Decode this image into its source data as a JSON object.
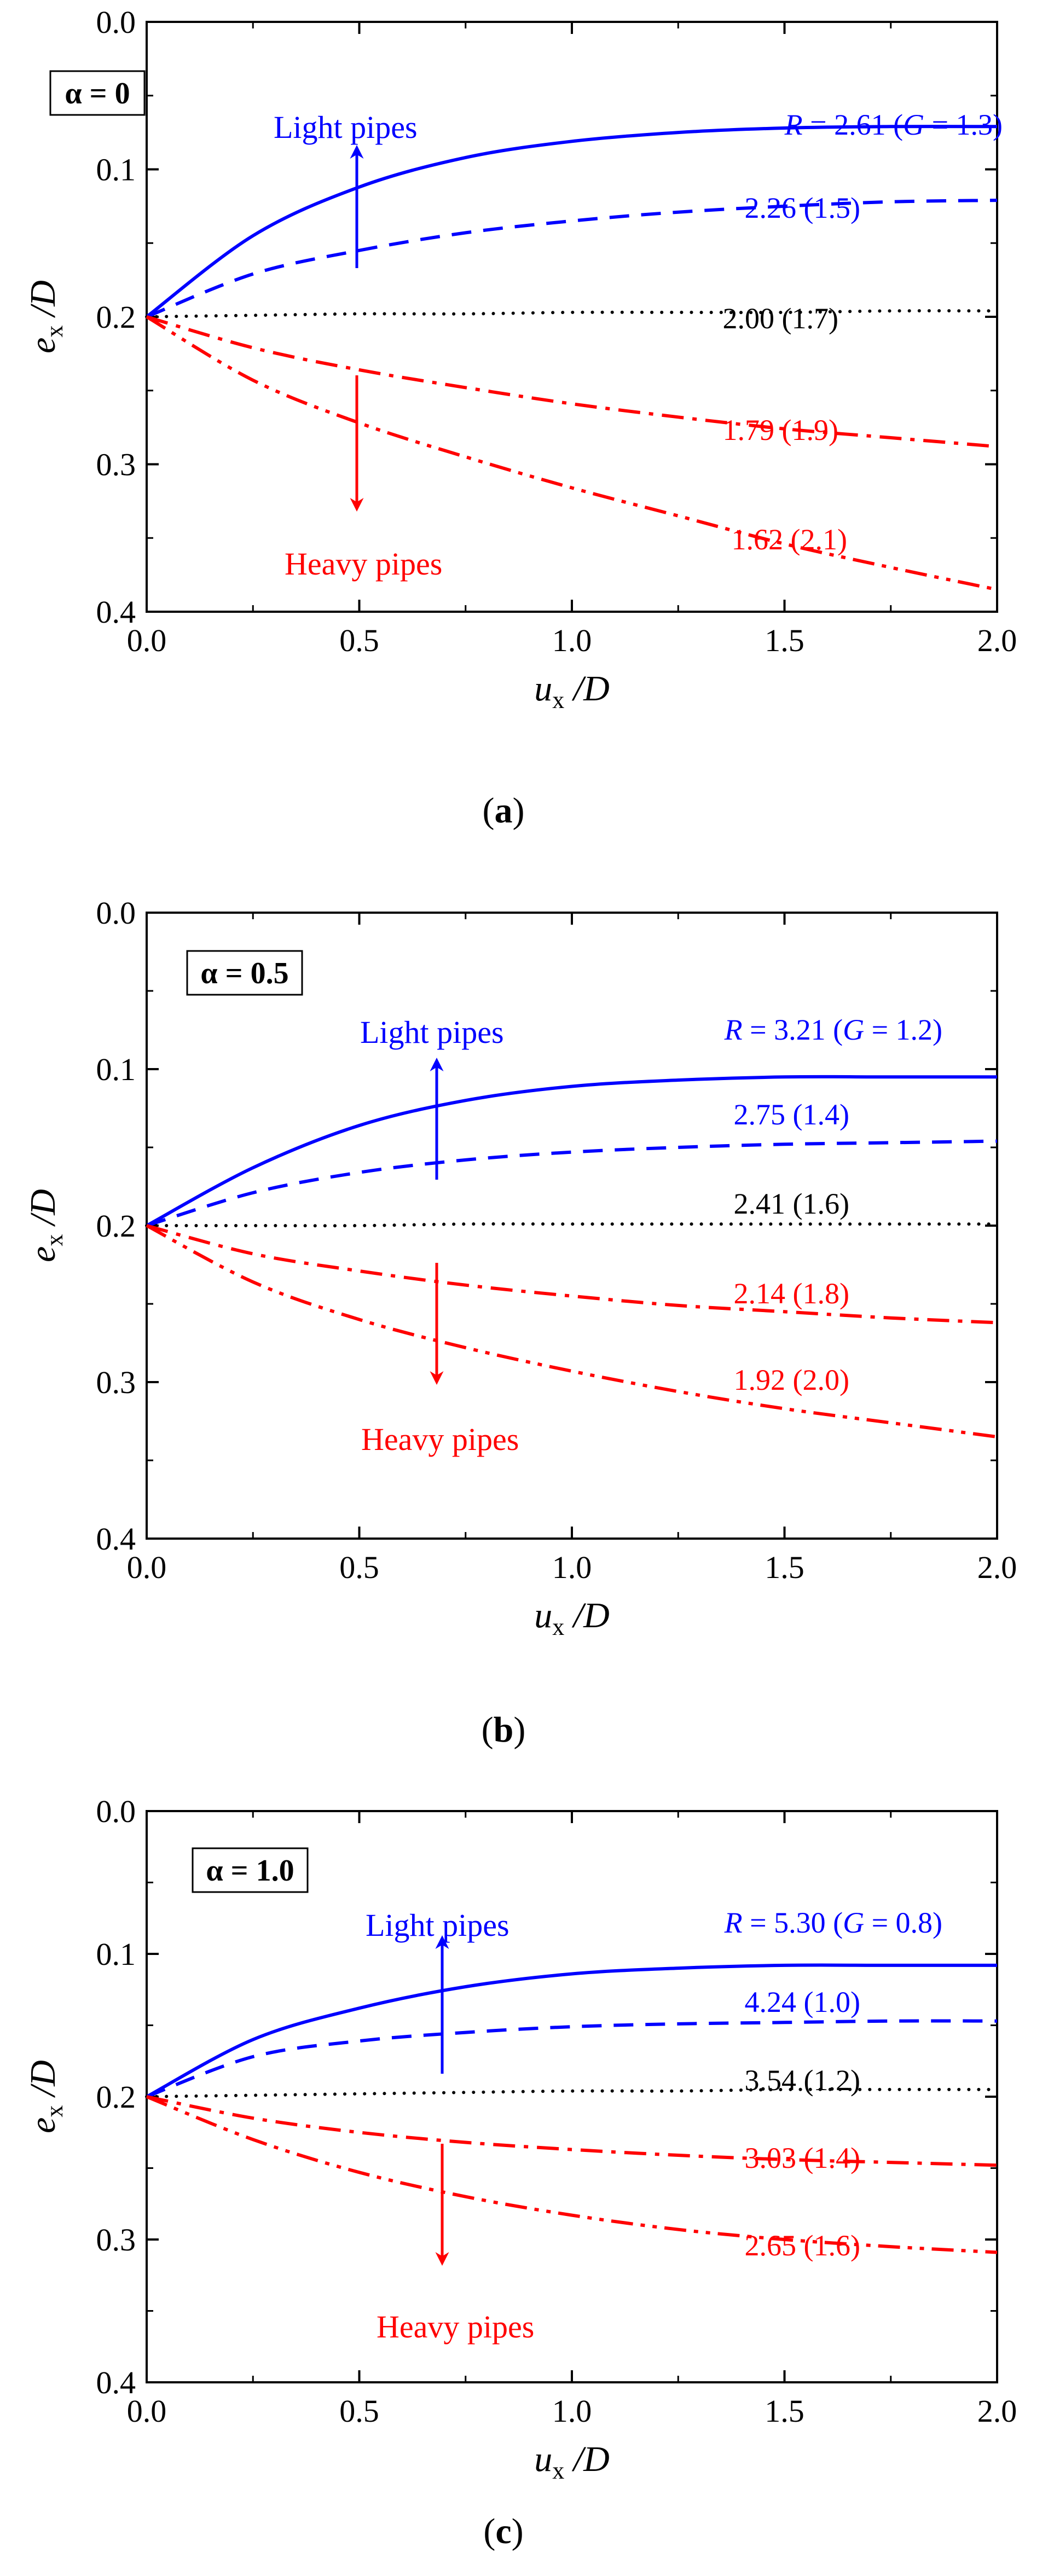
{
  "chart_data": [
    {
      "type": "line",
      "panel": "a",
      "panel_letter": "a",
      "alpha_text": "α = 0",
      "xlabel": "u_x /D",
      "ylabel": "e_x /D",
      "xlim": [
        0.0,
        2.0
      ],
      "ylim": [
        0.0,
        0.4
      ],
      "y_inverted": true,
      "xticks": [
        "0.0",
        "0.5",
        "1.0",
        "1.5",
        "2.0"
      ],
      "yticks": [
        "0.0",
        "0.1",
        "0.2",
        "0.3",
        "0.4"
      ],
      "x": [
        0.0,
        0.25,
        0.5,
        0.75,
        1.0,
        1.25,
        1.5,
        1.75,
        2.0
      ],
      "series": [
        {
          "label": "R = 2.61 (G = 1.3)",
          "R": "2.61",
          "G": "1.3",
          "color": "#0000ff",
          "style": "solid",
          "values": [
            0.2,
            0.145,
            0.112,
            0.092,
            0.081,
            0.075,
            0.072,
            0.071,
            0.071
          ]
        },
        {
          "label": "2.26 (1.5)",
          "R": "2.26",
          "G": "1.5",
          "color": "#0000ff",
          "style": "dash",
          "values": [
            0.2,
            0.171,
            0.155,
            0.143,
            0.135,
            0.129,
            0.125,
            0.122,
            0.121
          ]
        },
        {
          "label": "2.00 (1.7)",
          "R": "2.00",
          "G": "1.7",
          "color": "#000000",
          "style": "dot",
          "values": [
            0.2,
            0.199,
            0.198,
            0.198,
            0.197,
            0.197,
            0.197,
            0.196,
            0.196
          ]
        },
        {
          "label": "1.79 (1.9)",
          "R": "1.79",
          "G": "1.9",
          "color": "#ff0000",
          "style": "dashdot",
          "values": [
            0.2,
            0.221,
            0.236,
            0.248,
            0.259,
            0.268,
            0.276,
            0.282,
            0.288
          ]
        },
        {
          "label": "1.62 (2.1)",
          "R": "1.62",
          "G": "2.1",
          "color": "#ff0000",
          "style": "dashdotdot",
          "values": [
            0.2,
            0.243,
            0.272,
            0.295,
            0.316,
            0.335,
            0.354,
            0.37,
            0.385
          ]
        }
      ],
      "annotations": {
        "light": "Light pipes",
        "heavy": "Heavy pipes"
      }
    },
    {
      "type": "line",
      "panel": "b",
      "panel_letter": "b",
      "alpha_text": "α = 0.5",
      "xlabel": "u_x /D",
      "ylabel": "e_x /D",
      "xlim": [
        0.0,
        2.0
      ],
      "ylim": [
        0.0,
        0.4
      ],
      "y_inverted": true,
      "xticks": [
        "0.0",
        "0.5",
        "1.0",
        "1.5",
        "2.0"
      ],
      "yticks": [
        "0.0",
        "0.1",
        "0.2",
        "0.3",
        "0.4"
      ],
      "x": [
        0.0,
        0.25,
        0.5,
        0.75,
        1.0,
        1.25,
        1.5,
        1.75,
        2.0
      ],
      "series": [
        {
          "label": "R = 3.21 (G = 1.2)",
          "R": "3.21",
          "G": "1.2",
          "color": "#0000ff",
          "style": "solid",
          "values": [
            0.2,
            0.163,
            0.136,
            0.12,
            0.111,
            0.107,
            0.105,
            0.105,
            0.105
          ]
        },
        {
          "label": "2.75 (1.4)",
          "R": "2.75",
          "G": "1.4",
          "color": "#0000ff",
          "style": "dash",
          "values": [
            0.2,
            0.179,
            0.166,
            0.158,
            0.153,
            0.15,
            0.148,
            0.147,
            0.146
          ]
        },
        {
          "label": "2.41 (1.6)",
          "R": "2.41",
          "G": "1.6",
          "color": "#000000",
          "style": "dot",
          "values": [
            0.2,
            0.2,
            0.2,
            0.199,
            0.199,
            0.199,
            0.199,
            0.199,
            0.199
          ]
        },
        {
          "label": "2.14 (1.8)",
          "R": "2.14",
          "G": "1.8",
          "color": "#ff0000",
          "style": "dashdot",
          "values": [
            0.2,
            0.218,
            0.229,
            0.238,
            0.245,
            0.251,
            0.255,
            0.259,
            0.262
          ]
        },
        {
          "label": "1.92 (2.0)",
          "R": "1.92",
          "G": "2.0",
          "color": "#ff0000",
          "style": "dashdotdot",
          "values": [
            0.2,
            0.236,
            0.26,
            0.278,
            0.293,
            0.306,
            0.317,
            0.326,
            0.335
          ]
        }
      ],
      "annotations": {
        "light": "Light pipes",
        "heavy": "Heavy pipes"
      }
    },
    {
      "type": "line",
      "panel": "c",
      "panel_letter": "c",
      "alpha_text": "α = 1.0",
      "xlabel": "u_x /D",
      "ylabel": "e_x /D",
      "xlim": [
        0.0,
        2.0
      ],
      "ylim": [
        0.0,
        0.4
      ],
      "y_inverted": true,
      "xticks": [
        "0.0",
        "0.5",
        "1.0",
        "1.5",
        "2.0"
      ],
      "yticks": [
        "0.0",
        "0.1",
        "0.2",
        "0.3",
        "0.4"
      ],
      "x": [
        0.0,
        0.25,
        0.5,
        0.75,
        1.0,
        1.25,
        1.5,
        1.75,
        2.0
      ],
      "series": [
        {
          "label": "R = 5.30 (G = 0.8)",
          "R": "5.30",
          "G": "0.8",
          "color": "#0000ff",
          "style": "solid",
          "values": [
            0.2,
            0.16,
            0.138,
            0.123,
            0.114,
            0.11,
            0.108,
            0.108,
            0.108
          ]
        },
        {
          "label": "4.24 (1.0)",
          "R": "4.24",
          "G": "1.0",
          "color": "#0000ff",
          "style": "dash",
          "values": [
            0.2,
            0.172,
            0.161,
            0.155,
            0.151,
            0.149,
            0.148,
            0.147,
            0.147
          ]
        },
        {
          "label": "3.54 (1.2)",
          "R": "3.54",
          "G": "1.2",
          "color": "#000000",
          "style": "dot",
          "values": [
            0.2,
            0.199,
            0.198,
            0.197,
            0.196,
            0.196,
            0.195,
            0.195,
            0.195
          ]
        },
        {
          "label": "3.03 (1.4)",
          "R": "3.03",
          "G": "1.4",
          "color": "#ff0000",
          "style": "dashdot",
          "values": [
            0.2,
            0.215,
            0.225,
            0.232,
            0.237,
            0.241,
            0.244,
            0.246,
            0.248
          ]
        },
        {
          "label": "2.65 (1.6)",
          "R": "2.65",
          "G": "1.6",
          "color": "#ff0000",
          "style": "dashdotdot",
          "values": [
            0.2,
            0.23,
            0.253,
            0.27,
            0.283,
            0.293,
            0.3,
            0.305,
            0.309
          ]
        }
      ],
      "annotations": {
        "light": "Light pipes",
        "heavy": "Heavy pipes"
      }
    }
  ]
}
